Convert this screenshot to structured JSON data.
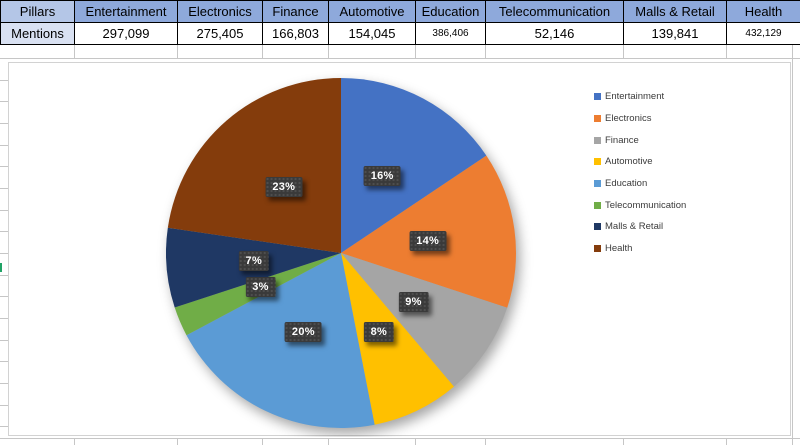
{
  "table": {
    "row1_label": "Pillars",
    "row2_label": "Mentions",
    "columns": [
      {
        "pillar": "Entertainment",
        "mentions": "297,099",
        "shrink": false
      },
      {
        "pillar": "Electronics",
        "mentions": "275,405",
        "shrink": false
      },
      {
        "pillar": "Finance",
        "mentions": "166,803",
        "shrink": false
      },
      {
        "pillar": "Automotive",
        "mentions": "154,045",
        "shrink": false
      },
      {
        "pillar": "Education",
        "mentions": "386,406",
        "shrink": true
      },
      {
        "pillar": "Telecommunication",
        "mentions": "52,146",
        "shrink": false
      },
      {
        "pillar": "Malls & Retail",
        "mentions": "139,841",
        "shrink": false
      },
      {
        "pillar": "Health",
        "mentions": "432,129",
        "shrink": true
      }
    ]
  },
  "chart_data": {
    "type": "pie",
    "categories": [
      "Entertainment",
      "Electronics",
      "Finance",
      "Automotive",
      "Education",
      "Telecommunication",
      "Malls & Retail",
      "Health"
    ],
    "values": [
      297099,
      275405,
      166803,
      154045,
      386406,
      52146,
      139841,
      432129
    ],
    "percent_labels": [
      "16%",
      "14%",
      "9%",
      "8%",
      "20%",
      "3%",
      "7%",
      "23%"
    ],
    "colors": [
      "#4472C4",
      "#ED7D31",
      "#A5A5A5",
      "#FFC000",
      "#5B9BD5",
      "#70AD47",
      "#1F3864",
      "#843C0C"
    ],
    "title": "",
    "legend_position": "right",
    "start_angle_deg": 0,
    "direction": "clockwise",
    "label_style": {
      "background": "#3A3A3A",
      "text_color": "#FFFFFF"
    }
  },
  "grid": {
    "line_color": "#C6C6C6",
    "header_fill": "#8EA9DB",
    "header_first_fill": "#B4C6E7",
    "row_label_fill": "#D9E1F2"
  }
}
